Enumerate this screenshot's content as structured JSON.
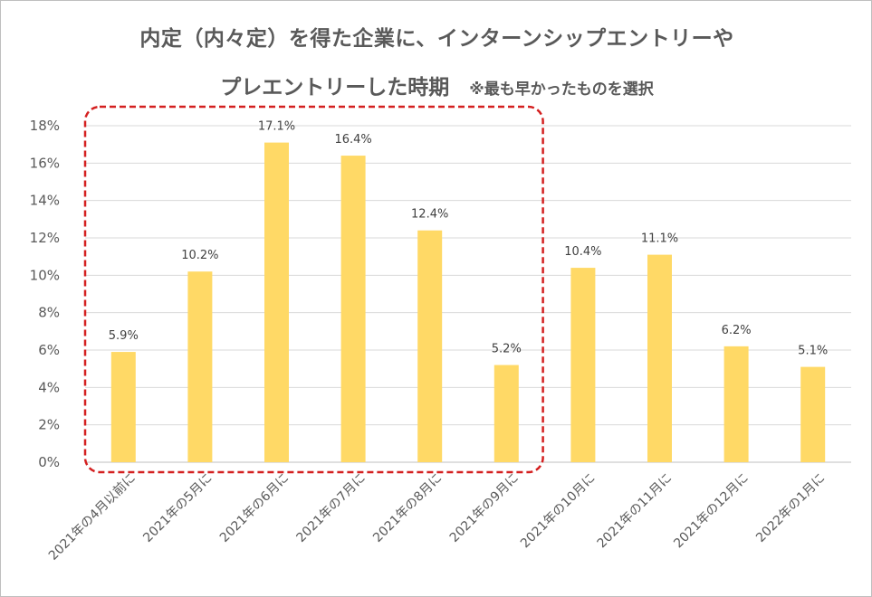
{
  "chart_data": {
    "type": "bar",
    "title_line1": "内定（内々定）を得た企業に、インターンシップエントリーや",
    "title_line2": "プレエントリーした時期",
    "note": "※最も早かったものを選択",
    "categories": [
      "2021年の4月以前に",
      "2021年の5月に",
      "2021年の6月に",
      "2021年の7月に",
      "2021年の8月に",
      "2021年の9月に",
      "2021年の10月に",
      "2021年の11月に",
      "2021年の12月に",
      "2022年の1月に"
    ],
    "values": [
      5.9,
      10.2,
      17.1,
      16.4,
      12.4,
      5.2,
      10.4,
      11.1,
      6.2,
      5.1
    ],
    "data_labels": [
      "5.9%",
      "10.2%",
      "17.1%",
      "16.4%",
      "12.4%",
      "5.2%",
      "10.4%",
      "11.1%",
      "6.2%",
      "5.1%"
    ],
    "y_ticks": [
      "0%",
      "2%",
      "4%",
      "6%",
      "8%",
      "10%",
      "12%",
      "14%",
      "16%",
      "18%"
    ],
    "ylim": [
      0,
      18
    ],
    "grid": true,
    "bar_color": "#FFD966",
    "highlight_color": "#D42020",
    "highlight_categories": [
      0,
      5
    ]
  }
}
